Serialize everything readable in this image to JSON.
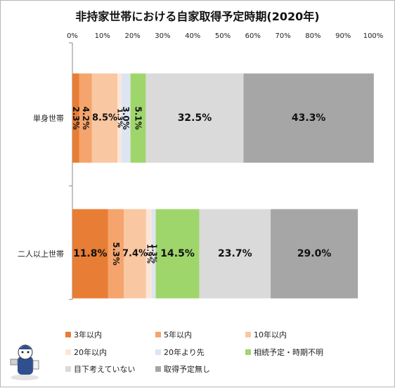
{
  "chart_data": {
    "type": "bar",
    "orientation": "horizontal",
    "stacked": true,
    "title": "非持家世帯における自家取得予定時期(2020年)",
    "categories": [
      "単身世帯",
      "二人以上世帯"
    ],
    "xlim": [
      0,
      100
    ],
    "xticks": [
      "0%",
      "10%",
      "20%",
      "30%",
      "40%",
      "50%",
      "60%",
      "70%",
      "80%",
      "90%",
      "100%"
    ],
    "grid": false,
    "legend_position": "bottom",
    "series": [
      {
        "name": "3年以内",
        "color": "#e87d35",
        "values": [
          2.3,
          11.8
        ],
        "labels": [
          "2.3%",
          "11.8%"
        ]
      },
      {
        "name": "5年以内",
        "color": "#f4a46c",
        "values": [
          4.2,
          5.3
        ],
        "labels": [
          "4.2%",
          "5.3%"
        ]
      },
      {
        "name": "10年以内",
        "color": "#f9c7a1",
        "values": [
          8.5,
          7.4
        ],
        "labels": [
          "8.5%",
          "7.4%"
        ]
      },
      {
        "name": "20年以内",
        "color": "#fde6d8",
        "values": [
          1.3,
          1.9
        ],
        "labels": [
          "1.3%",
          "1.9%"
        ]
      },
      {
        "name": "20年より先",
        "color": "#dde5f2",
        "values": [
          3.0,
          1.3
        ],
        "labels": [
          "3.0%",
          "1.3%"
        ]
      },
      {
        "name": "相続予定・時期不明",
        "color": "#9fd66b",
        "values": [
          5.1,
          14.5
        ],
        "labels": [
          "5.1%",
          "14.5%"
        ]
      },
      {
        "name": "目下考えていない",
        "color": "#dadada",
        "values": [
          32.5,
          23.7
        ],
        "labels": [
          "32.5%",
          "23.7%"
        ]
      },
      {
        "name": "取得予定無し",
        "color": "#a6a6a6",
        "values": [
          43.3,
          29.0
        ],
        "labels": [
          "43.3%",
          "29.0%"
        ]
      }
    ]
  }
}
